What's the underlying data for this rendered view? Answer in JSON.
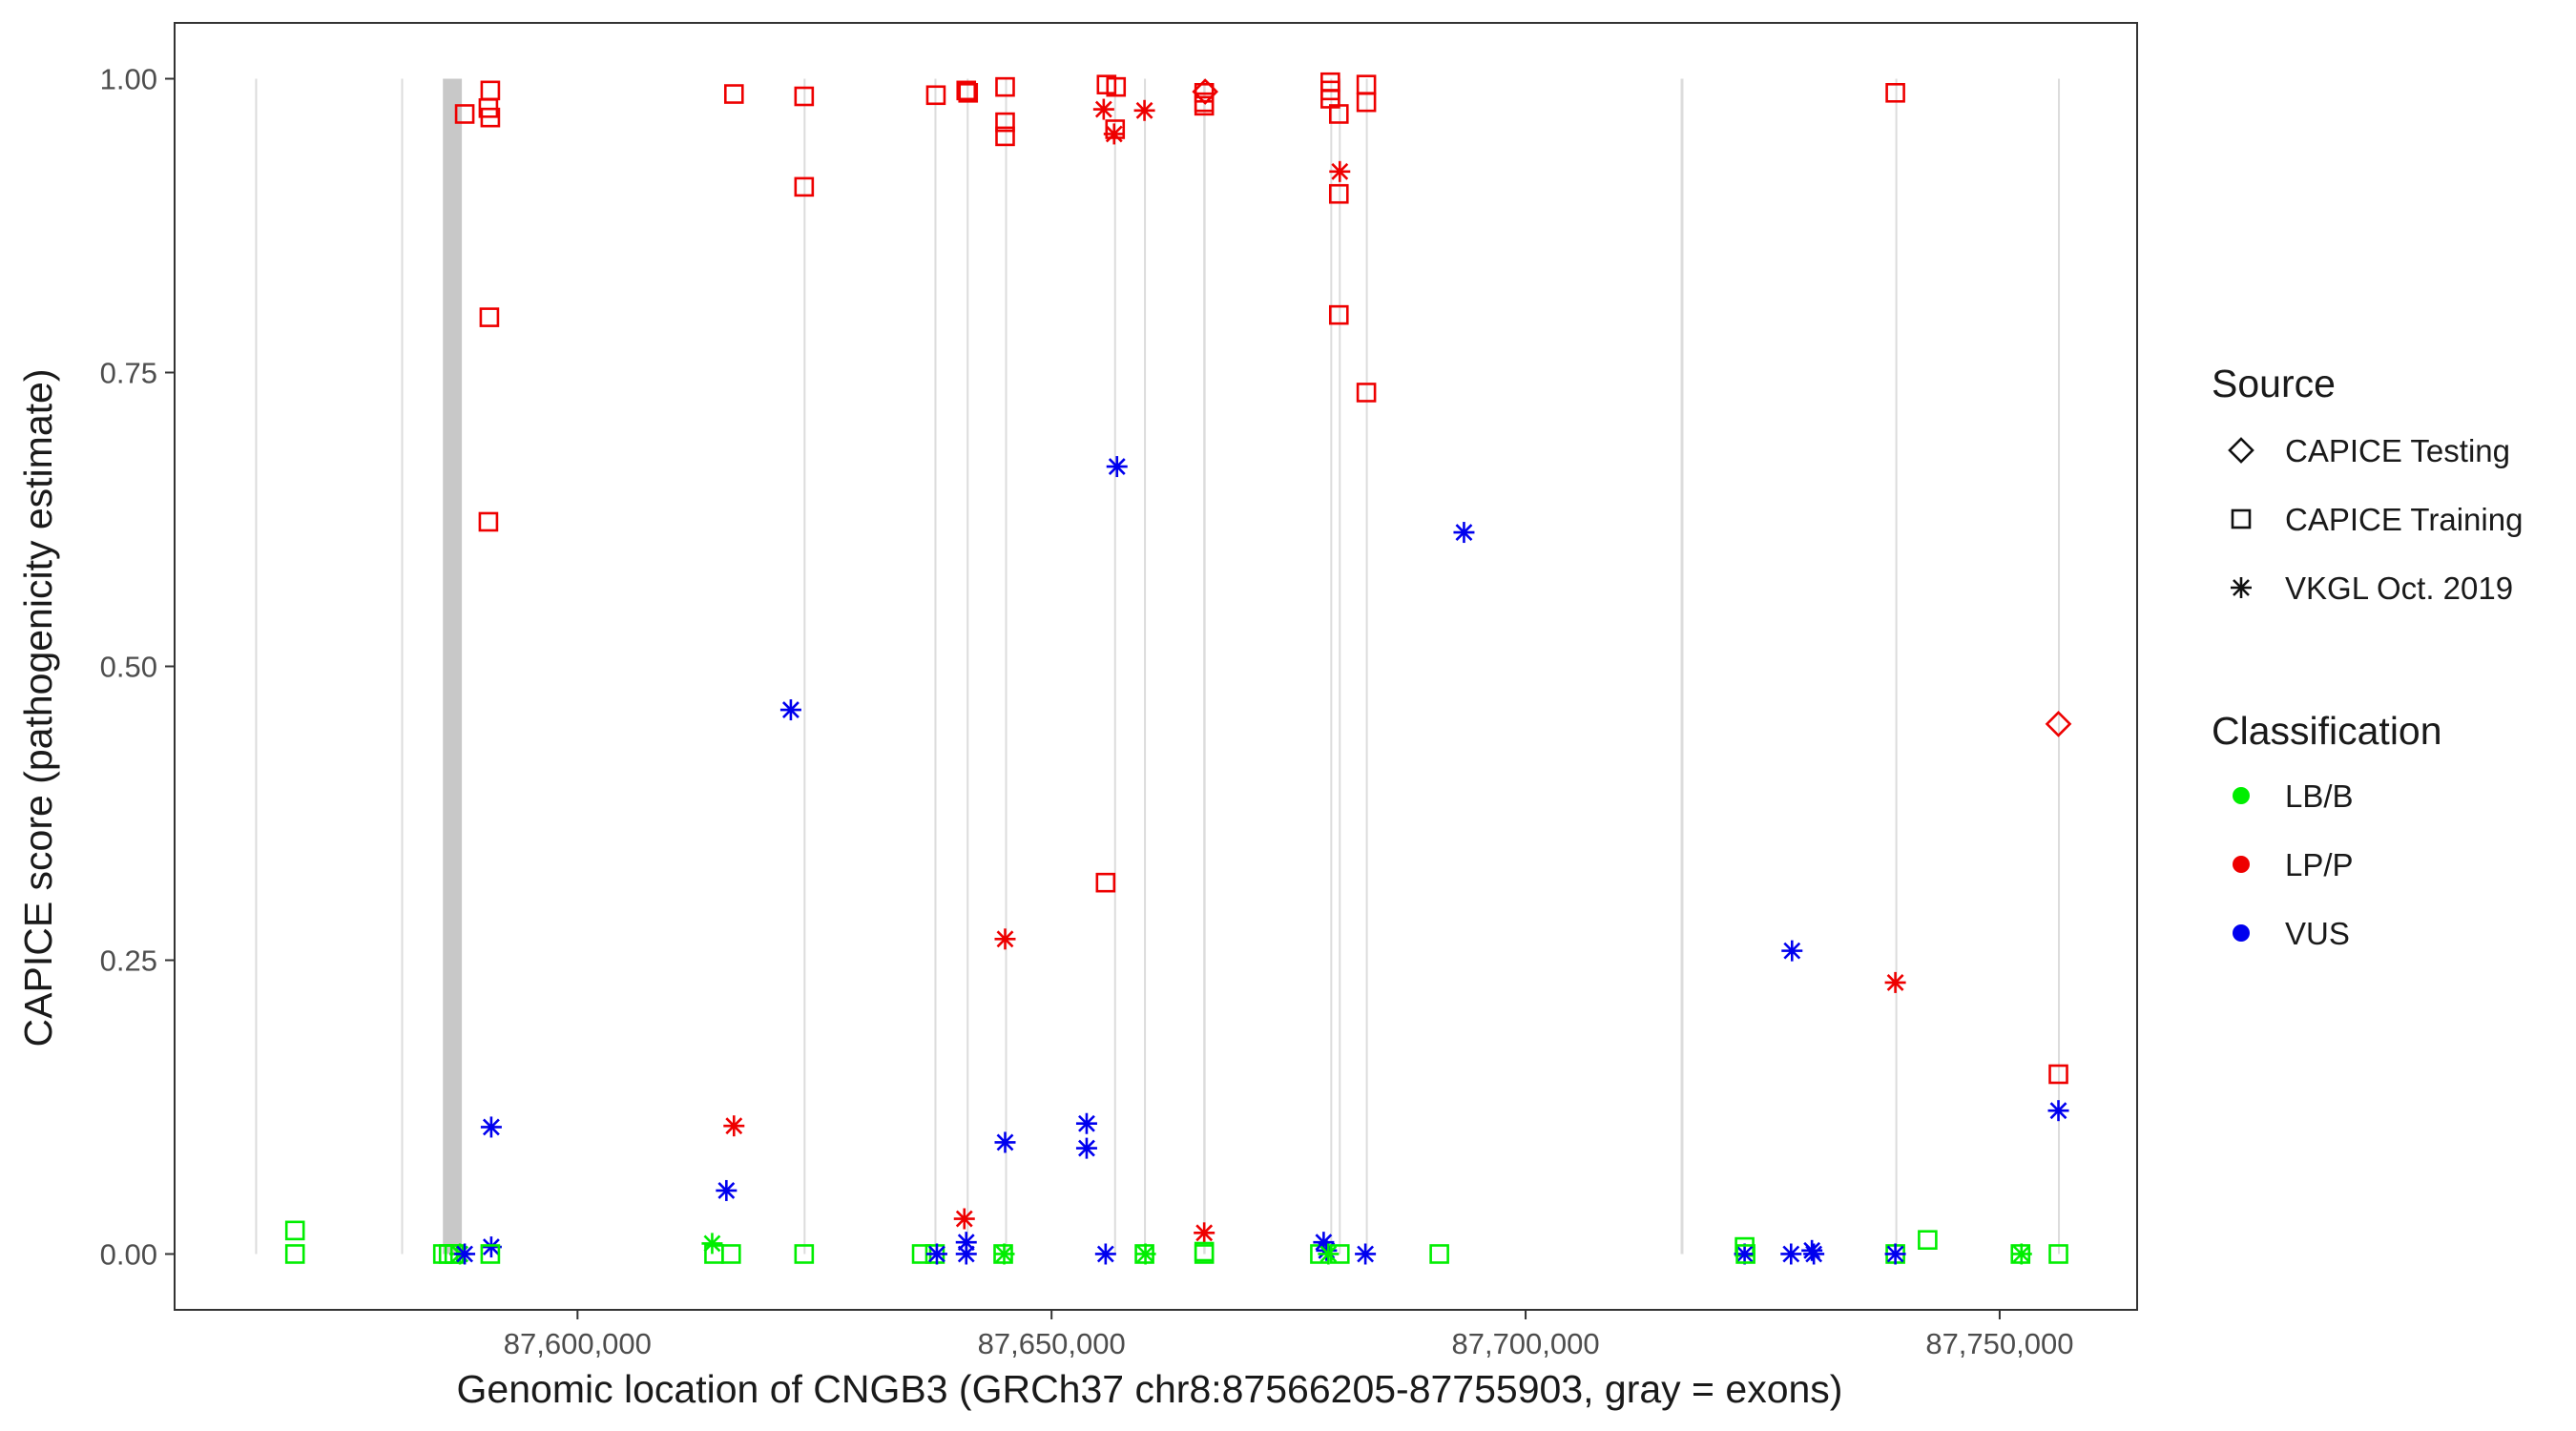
{
  "colors": {
    "LB/B": "#00ee00",
    "LP/P": "#ee0000",
    "VUS": "#0000ee",
    "exon": "#c8c8c8",
    "exon_line": "#dcdcdc",
    "panel_border": "#333333",
    "text": "#1a1a1a",
    "tick_text": "#4d4d4d"
  },
  "chart_data": {
    "type": "scatter",
    "title": "",
    "xlabel": "Genomic location of CNGB3 (GRCh37 chr8:87566205-87755903, gray = exons)",
    "ylabel": "CAPICE score (pathogenicity estimate)",
    "xlim": [
      87557500,
      87764500
    ],
    "ylim": [
      -0.0475,
      1.0475
    ],
    "x_ticks": [
      87600000,
      87650000,
      87700000,
      87750000
    ],
    "x_tick_labels": [
      "87,600,000",
      "87,650,000",
      "87,700,000",
      "87,750,000"
    ],
    "y_ticks": [
      0,
      0.25,
      0.5,
      0.75,
      1.0
    ],
    "y_tick_labels": [
      "0.00",
      "0.25",
      "0.50",
      "0.75",
      "1.00"
    ],
    "exons": [
      [
        87566000,
        87566150
      ],
      [
        87581400,
        87581550
      ],
      [
        87585800,
        87587800
      ],
      [
        87623850,
        87623950
      ],
      [
        87637650,
        87637750
      ],
      [
        87641050,
        87641150
      ],
      [
        87645100,
        87645250
      ],
      [
        87656600,
        87656750
      ],
      [
        87659750,
        87659850
      ],
      [
        87666000,
        87666250
      ],
      [
        87679400,
        87679500
      ],
      [
        87680300,
        87680450
      ],
      [
        87683150,
        87683250
      ],
      [
        87716350,
        87716650
      ],
      [
        87739000,
        87739100
      ],
      [
        87756150,
        87756250
      ]
    ],
    "legend": {
      "source_title": "Source",
      "source_items": [
        {
          "label": "CAPICE Testing",
          "shape": "diamond"
        },
        {
          "label": "CAPICE Training",
          "shape": "square"
        },
        {
          "label": "VKGL Oct. 2019",
          "shape": "star"
        }
      ],
      "class_title": "Classification",
      "class_items": [
        {
          "label": "LB/B",
          "class": "LB/B"
        },
        {
          "label": "LP/P",
          "class": "LP/P"
        },
        {
          "label": "VUS",
          "class": "VUS"
        }
      ]
    },
    "points": [
      {
        "x": 87570200,
        "y": 0.02,
        "shape": "square",
        "class": "LB/B"
      },
      {
        "x": 87570200,
        "y": 0.0,
        "shape": "square",
        "class": "LB/B"
      },
      {
        "x": 87585800,
        "y": 0.0,
        "shape": "square",
        "class": "LB/B"
      },
      {
        "x": 87586400,
        "y": 0.0,
        "shape": "square",
        "class": "LB/B"
      },
      {
        "x": 87587000,
        "y": 0.0,
        "shape": "square",
        "class": "LB/B"
      },
      {
        "x": 87587600,
        "y": 0.0,
        "shape": "star",
        "class": "LB/B"
      },
      {
        "x": 87588100,
        "y": 0.0,
        "shape": "star",
        "class": "VUS"
      },
      {
        "x": 87588100,
        "y": 0.97,
        "shape": "square",
        "class": "LP/P"
      },
      {
        "x": 87590800,
        "y": 0.99,
        "shape": "square",
        "class": "LP/P"
      },
      {
        "x": 87590600,
        "y": 0.975,
        "shape": "square",
        "class": "LP/P"
      },
      {
        "x": 87590800,
        "y": 0.967,
        "shape": "square",
        "class": "LP/P"
      },
      {
        "x": 87590700,
        "y": 0.797,
        "shape": "square",
        "class": "LP/P"
      },
      {
        "x": 87590600,
        "y": 0.623,
        "shape": "square",
        "class": "LP/P"
      },
      {
        "x": 87590900,
        "y": 0.108,
        "shape": "star",
        "class": "VUS"
      },
      {
        "x": 87590900,
        "y": 0.006,
        "shape": "star",
        "class": "VUS"
      },
      {
        "x": 87590800,
        "y": 0.0,
        "shape": "square",
        "class": "LB/B"
      },
      {
        "x": 87614200,
        "y": 0.009,
        "shape": "star",
        "class": "LB/B"
      },
      {
        "x": 87614400,
        "y": 0.0,
        "shape": "square",
        "class": "LB/B"
      },
      {
        "x": 87616200,
        "y": 0.0,
        "shape": "square",
        "class": "LB/B"
      },
      {
        "x": 87615700,
        "y": 0.054,
        "shape": "star",
        "class": "VUS"
      },
      {
        "x": 87616500,
        "y": 0.109,
        "shape": "star",
        "class": "LP/P"
      },
      {
        "x": 87616500,
        "y": 0.987,
        "shape": "square",
        "class": "LP/P"
      },
      {
        "x": 87622500,
        "y": 0.463,
        "shape": "star",
        "class": "VUS"
      },
      {
        "x": 87623900,
        "y": 0.985,
        "shape": "square",
        "class": "LP/P"
      },
      {
        "x": 87623900,
        "y": 0.908,
        "shape": "square",
        "class": "LP/P"
      },
      {
        "x": 87623900,
        "y": 0.0,
        "shape": "square",
        "class": "LB/B"
      },
      {
        "x": 87636300,
        "y": 0.0,
        "shape": "square",
        "class": "LB/B"
      },
      {
        "x": 87637700,
        "y": 0.0,
        "shape": "square",
        "class": "LB/B"
      },
      {
        "x": 87637800,
        "y": 0.986,
        "shape": "square",
        "class": "LP/P"
      },
      {
        "x": 87637900,
        "y": 0.0,
        "shape": "star",
        "class": "VUS"
      },
      {
        "x": 87640800,
        "y": 0.03,
        "shape": "star",
        "class": "LP/P"
      },
      {
        "x": 87641000,
        "y": 0.01,
        "shape": "star",
        "class": "VUS"
      },
      {
        "x": 87641000,
        "y": 0.0,
        "shape": "star",
        "class": "VUS"
      },
      {
        "x": 87641000,
        "y": 0.99,
        "shape": "square",
        "class": "LP/P"
      },
      {
        "x": 87641200,
        "y": 0.988,
        "shape": "square",
        "class": "LP/P"
      },
      {
        "x": 87644900,
        "y": 0.0,
        "shape": "square",
        "class": "LB/B"
      },
      {
        "x": 87645000,
        "y": 0.0,
        "shape": "star",
        "class": "LB/B"
      },
      {
        "x": 87645100,
        "y": 0.993,
        "shape": "square",
        "class": "LP/P"
      },
      {
        "x": 87645100,
        "y": 0.963,
        "shape": "square",
        "class": "LP/P"
      },
      {
        "x": 87645100,
        "y": 0.951,
        "shape": "square",
        "class": "LP/P"
      },
      {
        "x": 87645100,
        "y": 0.268,
        "shape": "star",
        "class": "LP/P"
      },
      {
        "x": 87645100,
        "y": 0.095,
        "shape": "star",
        "class": "VUS"
      },
      {
        "x": 87653700,
        "y": 0.111,
        "shape": "star",
        "class": "VUS"
      },
      {
        "x": 87653700,
        "y": 0.09,
        "shape": "star",
        "class": "VUS"
      },
      {
        "x": 87655700,
        "y": 0.0,
        "shape": "star",
        "class": "VUS"
      },
      {
        "x": 87655500,
        "y": 0.974,
        "shape": "star",
        "class": "LP/P"
      },
      {
        "x": 87655800,
        "y": 0.995,
        "shape": "square",
        "class": "LP/P"
      },
      {
        "x": 87655700,
        "y": 0.316,
        "shape": "square",
        "class": "LP/P"
      },
      {
        "x": 87656800,
        "y": 0.993,
        "shape": "square",
        "class": "LP/P"
      },
      {
        "x": 87656700,
        "y": 0.957,
        "shape": "square",
        "class": "LP/P"
      },
      {
        "x": 87656600,
        "y": 0.953,
        "shape": "star",
        "class": "LP/P"
      },
      {
        "x": 87656900,
        "y": 0.67,
        "shape": "star",
        "class": "VUS"
      },
      {
        "x": 87659800,
        "y": 0.973,
        "shape": "star",
        "class": "LP/P"
      },
      {
        "x": 87659800,
        "y": 0.0,
        "shape": "square",
        "class": "LB/B"
      },
      {
        "x": 87659900,
        "y": 0.0,
        "shape": "star",
        "class": "LB/B"
      },
      {
        "x": 87666100,
        "y": 0.988,
        "shape": "square",
        "class": "LP/P"
      },
      {
        "x": 87666200,
        "y": 0.989,
        "shape": "diamond",
        "class": "LP/P"
      },
      {
        "x": 87666100,
        "y": 0.98,
        "shape": "square",
        "class": "LP/P"
      },
      {
        "x": 87666100,
        "y": 0.977,
        "shape": "square",
        "class": "LP/P"
      },
      {
        "x": 87666100,
        "y": 0.018,
        "shape": "star",
        "class": "LP/P"
      },
      {
        "x": 87666100,
        "y": 0.002,
        "shape": "square",
        "class": "LB/B"
      },
      {
        "x": 87666100,
        "y": 0.0,
        "shape": "square",
        "class": "LB/B"
      },
      {
        "x": 87678300,
        "y": 0.0,
        "shape": "square",
        "class": "LB/B"
      },
      {
        "x": 87678700,
        "y": 0.01,
        "shape": "star",
        "class": "VUS"
      },
      {
        "x": 87679000,
        "y": 0.003,
        "shape": "star",
        "class": "VUS"
      },
      {
        "x": 87679200,
        "y": 0.0,
        "shape": "star",
        "class": "LB/B"
      },
      {
        "x": 87679400,
        "y": 0.997,
        "shape": "square",
        "class": "LP/P"
      },
      {
        "x": 87679400,
        "y": 0.99,
        "shape": "square",
        "class": "LP/P"
      },
      {
        "x": 87679400,
        "y": 0.983,
        "shape": "square",
        "class": "LP/P"
      },
      {
        "x": 87680300,
        "y": 0.97,
        "shape": "square",
        "class": "LP/P"
      },
      {
        "x": 87680400,
        "y": 0.921,
        "shape": "star",
        "class": "LP/P"
      },
      {
        "x": 87680300,
        "y": 0.902,
        "shape": "square",
        "class": "LP/P"
      },
      {
        "x": 87680300,
        "y": 0.799,
        "shape": "square",
        "class": "LP/P"
      },
      {
        "x": 87680400,
        "y": 0.0,
        "shape": "square",
        "class": "LB/B"
      },
      {
        "x": 87683200,
        "y": 0.995,
        "shape": "square",
        "class": "LP/P"
      },
      {
        "x": 87683200,
        "y": 0.98,
        "shape": "square",
        "class": "LP/P"
      },
      {
        "x": 87683200,
        "y": 0.733,
        "shape": "square",
        "class": "LP/P"
      },
      {
        "x": 87683100,
        "y": 0.0,
        "shape": "star",
        "class": "VUS"
      },
      {
        "x": 87690900,
        "y": 0.0,
        "shape": "square",
        "class": "LB/B"
      },
      {
        "x": 87693500,
        "y": 0.614,
        "shape": "star",
        "class": "VUS"
      },
      {
        "x": 87723100,
        "y": 0.006,
        "shape": "square",
        "class": "LB/B"
      },
      {
        "x": 87723100,
        "y": 0.0,
        "shape": "star",
        "class": "VUS"
      },
      {
        "x": 87723200,
        "y": 0.0,
        "shape": "square",
        "class": "LB/B"
      },
      {
        "x": 87728100,
        "y": 0.258,
        "shape": "star",
        "class": "VUS"
      },
      {
        "x": 87728000,
        "y": 0.0,
        "shape": "star",
        "class": "VUS"
      },
      {
        "x": 87730200,
        "y": 0.003,
        "shape": "star",
        "class": "VUS"
      },
      {
        "x": 87730400,
        "y": 0.0,
        "shape": "star",
        "class": "VUS"
      },
      {
        "x": 87739000,
        "y": 0.988,
        "shape": "square",
        "class": "LP/P"
      },
      {
        "x": 87739000,
        "y": 0.231,
        "shape": "star",
        "class": "LP/P"
      },
      {
        "x": 87739000,
        "y": 0.0,
        "shape": "square",
        "class": "LB/B"
      },
      {
        "x": 87739000,
        "y": 0.0,
        "shape": "star",
        "class": "VUS"
      },
      {
        "x": 87742400,
        "y": 0.012,
        "shape": "square",
        "class": "LB/B"
      },
      {
        "x": 87752200,
        "y": 0.0,
        "shape": "square",
        "class": "LB/B"
      },
      {
        "x": 87752300,
        "y": 0.0,
        "shape": "star",
        "class": "LB/B"
      },
      {
        "x": 87756200,
        "y": 0.451,
        "shape": "diamond",
        "class": "LP/P"
      },
      {
        "x": 87756200,
        "y": 0.153,
        "shape": "square",
        "class": "LP/P"
      },
      {
        "x": 87756200,
        "y": 0.122,
        "shape": "star",
        "class": "VUS"
      },
      {
        "x": 87756200,
        "y": 0.0,
        "shape": "square",
        "class": "LB/B"
      }
    ]
  }
}
